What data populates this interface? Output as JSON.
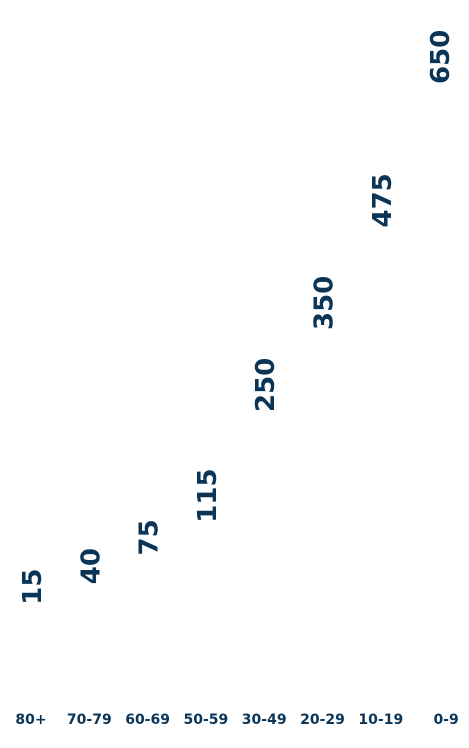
{
  "chart_data": {
    "type": "bar",
    "title": "",
    "xlabel": "",
    "ylabel": "",
    "categories": [
      "80+",
      "70-79",
      "60-69",
      "50-59",
      "30-49",
      "20-29",
      "10-19",
      "0-9"
    ],
    "values": [
      15,
      40,
      75,
      115,
      250,
      350,
      475,
      650
    ],
    "ylim": [
      0,
      650
    ],
    "grid": false,
    "legend": "none",
    "colors": {
      "label": "#0b3557",
      "background": "#ffffff"
    }
  }
}
